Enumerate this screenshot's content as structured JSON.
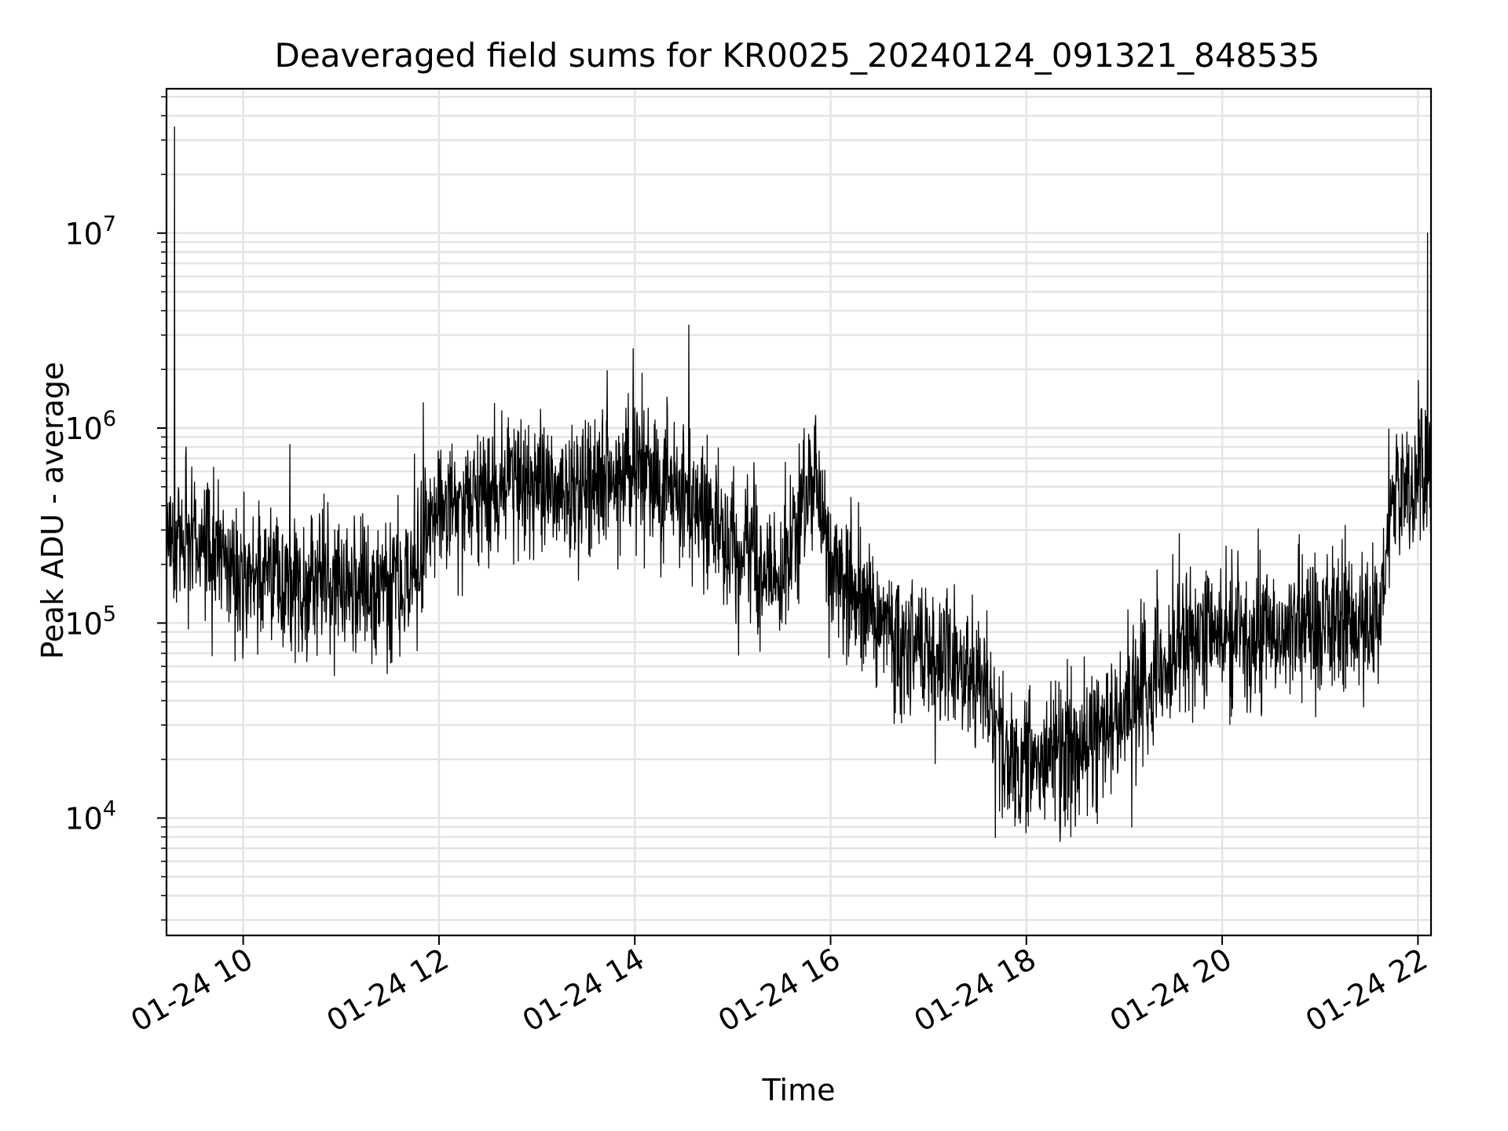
{
  "chart_data": {
    "type": "line",
    "title": "Deaveraged field sums for KR0025_20240124_091321_848535",
    "xlabel": "Time",
    "ylabel": "Peak ADU - average",
    "y_scale": "log",
    "ylim": [
      2500,
      55000000
    ],
    "xlim": [
      "2024-01-24 09:13",
      "2024-01-24 22:08"
    ],
    "grid": true,
    "legend": "none",
    "line_color": "#000000",
    "x_tick_labels": [
      "01-24 10",
      "01-24 12",
      "01-24 14",
      "01-24 16",
      "01-24 18",
      "01-24 20",
      "01-24 22"
    ],
    "y_tick_labels": [
      {
        "base": "10",
        "exp": "4"
      },
      {
        "base": "10",
        "exp": "5"
      },
      {
        "base": "10",
        "exp": "6"
      },
      {
        "base": "10",
        "exp": "7"
      }
    ],
    "series": [
      {
        "x": [
          "2024-01-24 09:13",
          "2024-01-24 09:30",
          "2024-01-24 09:45",
          "2024-01-24 10:00",
          "2024-01-24 10:30",
          "2024-01-24 11:00",
          "2024-01-24 11:30",
          "2024-01-24 11:45",
          "2024-01-24 12:00",
          "2024-01-24 12:30",
          "2024-01-24 13:00",
          "2024-01-24 13:30",
          "2024-01-24 14:00",
          "2024-01-24 14:30",
          "2024-01-24 15:00",
          "2024-01-24 15:30",
          "2024-01-24 15:50",
          "2024-01-24 16:00",
          "2024-01-24 16:30",
          "2024-01-24 17:00",
          "2024-01-24 17:30",
          "2024-01-24 17:50",
          "2024-01-24 18:15",
          "2024-01-24 18:45",
          "2024-01-24 19:15",
          "2024-01-24 19:45",
          "2024-01-24 20:15",
          "2024-01-24 20:45",
          "2024-01-24 21:15",
          "2024-01-24 21:35",
          "2024-01-24 21:45",
          "2024-01-24 22:08"
        ],
        "y": [
          250000,
          280000,
          230000,
          180000,
          170000,
          160000,
          150000,
          180000,
          400000,
          500000,
          480000,
          520000,
          600000,
          500000,
          250000,
          180000,
          600000,
          200000,
          100000,
          70000,
          50000,
          20000,
          20000,
          25000,
          50000,
          90000,
          80000,
          90000,
          95000,
          100000,
          400000,
          600000
        ]
      }
    ],
    "spikes": [
      {
        "x": "2024-01-24 09:18",
        "y": 35000000
      },
      {
        "x": "2024-01-24 22:06",
        "y": 10000000
      }
    ]
  }
}
